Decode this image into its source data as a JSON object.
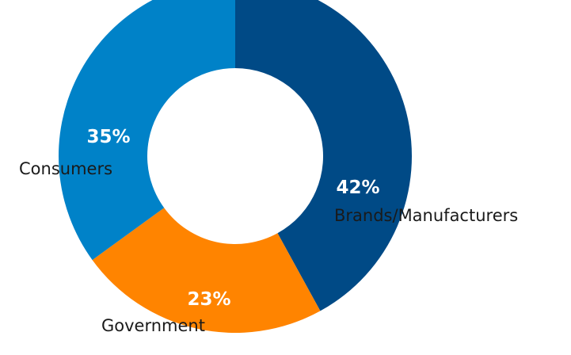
{
  "chart_data": {
    "type": "pie",
    "variant": "donut",
    "categories": [
      "Brands/Manufacturers",
      "Government",
      "Consumers"
    ],
    "values": [
      42,
      23,
      35
    ],
    "labels": [
      "42%",
      "23%",
      "35%"
    ],
    "colors": [
      "#004A86",
      "#FF8400",
      "#0082C8"
    ],
    "title": "",
    "legend": "none"
  }
}
